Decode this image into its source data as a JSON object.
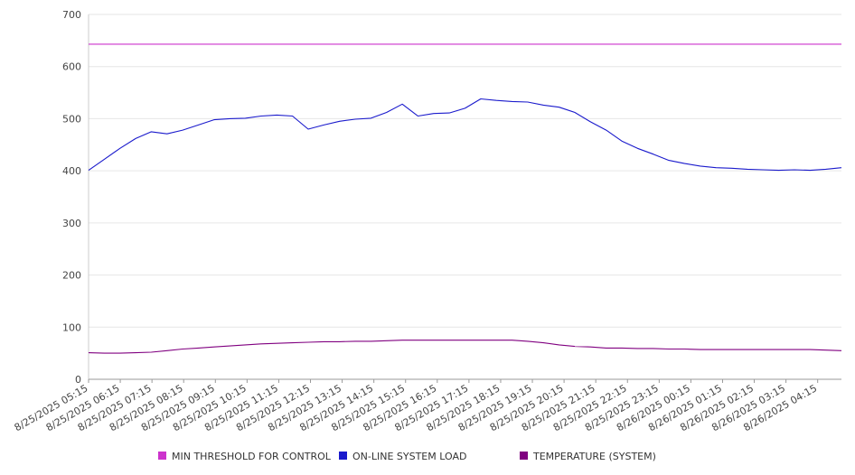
{
  "chart_data": {
    "type": "line",
    "title": "",
    "xlabel": "",
    "ylabel": "",
    "ylim": [
      0,
      700
    ],
    "yticks": [
      0,
      100,
      200,
      300,
      400,
      500,
      600,
      700
    ],
    "grid": true,
    "legend_position": "bottom",
    "x_tick_labels": [
      "8/25/2025 05:15",
      "8/25/2025 06:15",
      "8/25/2025 07:15",
      "8/25/2025 08:15",
      "8/25/2025 09:15",
      "8/25/2025 10:15",
      "8/25/2025 11:15",
      "8/25/2025 12:15",
      "8/25/2025 13:15",
      "8/25/2025 14:15",
      "8/25/2025 15:15",
      "8/25/2025 16:15",
      "8/25/2025 17:15",
      "8/25/2025 18:15",
      "8/25/2025 19:15",
      "8/25/2025 20:15",
      "8/25/2025 21:15",
      "8/25/2025 22:15",
      "8/25/2025 23:15",
      "8/26/2025 00:15",
      "8/26/2025 01:15",
      "8/26/2025 02:15",
      "8/26/2025 03:15",
      "8/26/2025 04:15"
    ],
    "x": [
      "8/25/2025 05:15",
      "8/25/2025 05:45",
      "8/25/2025 06:15",
      "8/25/2025 06:45",
      "8/25/2025 07:15",
      "8/25/2025 07:45",
      "8/25/2025 08:15",
      "8/25/2025 08:45",
      "8/25/2025 09:15",
      "8/25/2025 09:45",
      "8/25/2025 10:15",
      "8/25/2025 10:45",
      "8/25/2025 11:15",
      "8/25/2025 11:45",
      "8/25/2025 12:15",
      "8/25/2025 12:45",
      "8/25/2025 13:15",
      "8/25/2025 13:45",
      "8/25/2025 14:15",
      "8/25/2025 14:45",
      "8/25/2025 15:15",
      "8/25/2025 15:45",
      "8/25/2025 16:15",
      "8/25/2025 16:45",
      "8/25/2025 17:15",
      "8/25/2025 17:45",
      "8/25/2025 18:15",
      "8/25/2025 18:45",
      "8/25/2025 19:15",
      "8/25/2025 19:45",
      "8/25/2025 20:15",
      "8/25/2025 20:45",
      "8/25/2025 21:15",
      "8/25/2025 21:45",
      "8/25/2025 22:15",
      "8/25/2025 22:45",
      "8/25/2025 23:15",
      "8/25/2025 23:45",
      "8/26/2025 00:15",
      "8/26/2025 00:45",
      "8/26/2025 01:15",
      "8/26/2025 01:45",
      "8/26/2025 02:15",
      "8/26/2025 02:45",
      "8/26/2025 03:15",
      "8/26/2025 03:45",
      "8/26/2025 04:15",
      "8/26/2025 04:45",
      "8/26/2025 05:15"
    ],
    "series": [
      {
        "name": "MIN THRESHOLD FOR CONTROL",
        "color": "#cc33cc",
        "values": [
          643,
          643,
          643,
          643,
          643,
          643,
          643,
          643,
          643,
          643,
          643,
          643,
          643,
          643,
          643,
          643,
          643,
          643,
          643,
          643,
          643,
          643,
          643,
          643,
          643,
          643,
          643,
          643,
          643,
          643,
          643,
          643,
          643,
          643,
          643,
          643,
          643,
          643,
          643,
          643,
          643,
          643,
          643,
          643,
          643,
          643,
          643,
          643,
          643
        ]
      },
      {
        "name": "ON-LINE SYSTEM LOAD",
        "color": "#1a1acc",
        "values": [
          401,
          422,
          443,
          462,
          475,
          471,
          478,
          488,
          498,
          500,
          501,
          505,
          507,
          505,
          480,
          488,
          495,
          499,
          501,
          512,
          528,
          505,
          510,
          511,
          520,
          538,
          535,
          533,
          532,
          526,
          522,
          512,
          494,
          478,
          457,
          443,
          432,
          420,
          414,
          409,
          406,
          405,
          403,
          402,
          401,
          402,
          401,
          403,
          406
        ]
      },
      {
        "name": "TEMPERATURE (SYSTEM)",
        "color": "#800080",
        "values": [
          51,
          50,
          50,
          51,
          52,
          55,
          58,
          60,
          62,
          64,
          66,
          68,
          69,
          70,
          71,
          72,
          72,
          73,
          73,
          74,
          75,
          75,
          75,
          75,
          75,
          75,
          75,
          75,
          73,
          70,
          66,
          63,
          62,
          60,
          60,
          59,
          59,
          58,
          58,
          57,
          57,
          57,
          57,
          57,
          57,
          57,
          57,
          56,
          55
        ]
      }
    ]
  }
}
